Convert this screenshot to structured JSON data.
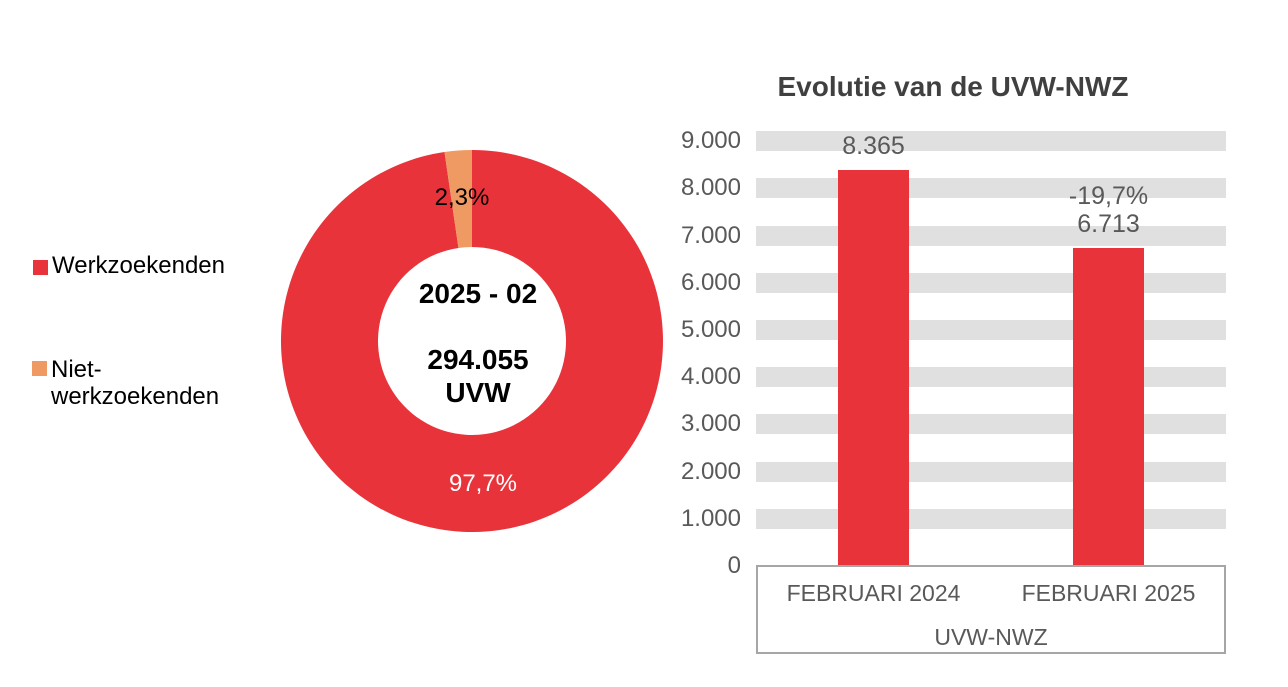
{
  "colors": {
    "red": "#E8333A",
    "orange": "#F09A63",
    "grid_band": "#E0E0E0",
    "axis_text": "#595959",
    "title_text": "#404040",
    "box_border": "#A6A6A6",
    "donut_label_dark": "#000000",
    "donut_label_light": "#FFFFFF"
  },
  "legend": {
    "items": [
      {
        "label": "Werkzoekenden",
        "color": "#E8333A"
      },
      {
        "label": "Niet-\nwerkzoekenden",
        "color": "#F09A63"
      }
    ]
  },
  "chart_data": [
    {
      "type": "pie",
      "subtype": "donut",
      "period": "2025 - 02",
      "total_label": "294.055 UVW",
      "center_text": "2025 - 02\n\n294.055\nUVW",
      "slices": [
        {
          "name": "Werkzoekenden",
          "value_pct": 97.7,
          "label": "97,7%",
          "color": "#E8333A",
          "label_color": "#FFFFFF"
        },
        {
          "name": "Niet-werkzoekenden",
          "value_pct": 2.3,
          "label": "2,3%",
          "color": "#F09A63",
          "label_color": "#000000"
        }
      ],
      "legend_position": "left",
      "start_angle_deg": 0,
      "direction": "clockwise"
    },
    {
      "type": "bar",
      "title": "Evolutie van de UVW-NWZ",
      "categories": [
        "FEBRUARI 2024",
        "FEBRUARI 2025"
      ],
      "values": [
        8365,
        6713
      ],
      "data_labels": [
        "8.365",
        "-19,7%\n6.713"
      ],
      "xlabel": "UVW-NWZ",
      "ylabel": "",
      "ylim": [
        0,
        9000
      ],
      "ytick_step": 1000,
      "ytick_labels": [
        "0",
        "1.000",
        "2.000",
        "3.000",
        "4.000",
        "5.000",
        "6.000",
        "7.000",
        "8.000",
        "9.000"
      ],
      "grid": "horizontal-bands",
      "bar_color": "#E8333A",
      "legend": "none"
    }
  ]
}
